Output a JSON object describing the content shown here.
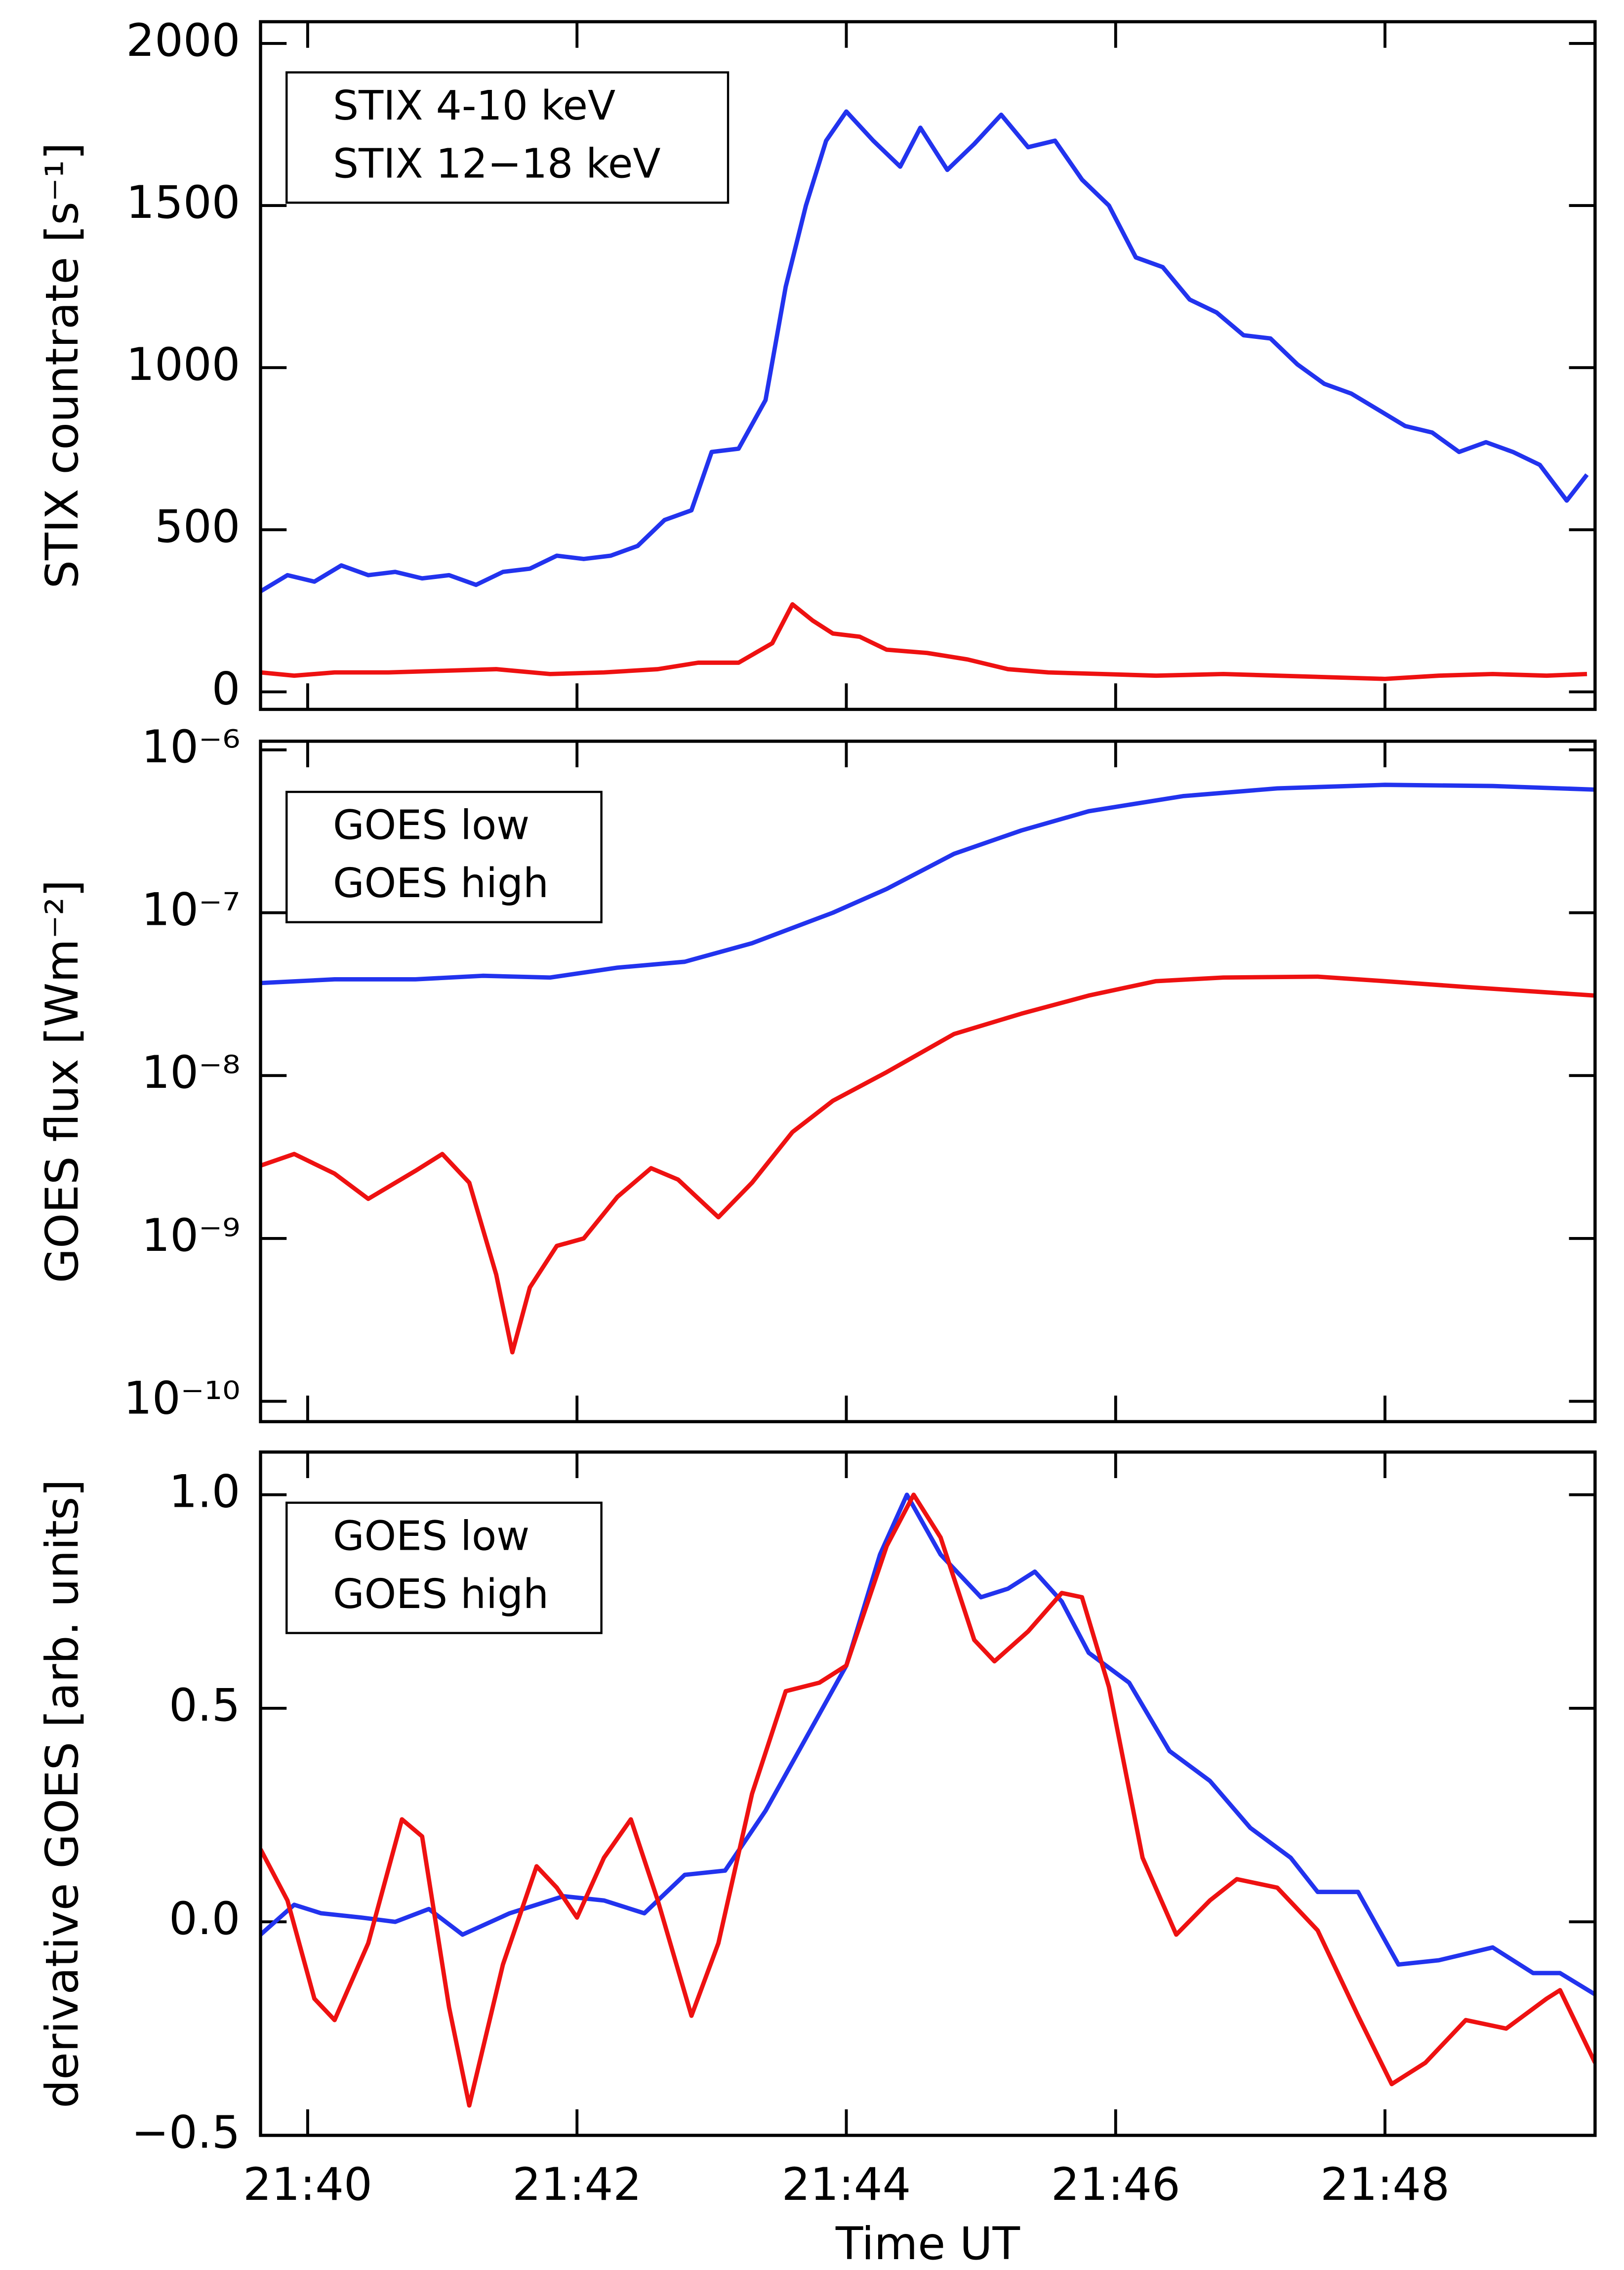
{
  "chart_data": [
    {
      "type": "line",
      "ylabel": "STIX countrate [s⁻¹]",
      "legend": "upper left",
      "log_y": false,
      "xlim": [
        39.65,
        49.56
      ],
      "xticks": [
        40,
        42,
        44,
        46,
        48
      ],
      "ylim": [
        -54,
        2067
      ],
      "yticks": [
        0,
        500,
        1000,
        1500,
        2000
      ],
      "series": [
        {
          "name": "STIX 4-10 keV",
          "color": "#2233ee",
          "x": [
            39.65,
            39.85,
            40.05,
            40.25,
            40.45,
            40.65,
            40.85,
            41.05,
            41.25,
            41.45,
            41.65,
            41.85,
            42.05,
            42.25,
            42.45,
            42.65,
            42.85,
            43.0,
            43.2,
            43.4,
            43.55,
            43.7,
            43.85,
            44.0,
            44.2,
            44.4,
            44.55,
            44.75,
            44.95,
            45.15,
            45.35,
            45.55,
            45.75,
            45.95,
            46.15,
            46.35,
            46.55,
            46.75,
            46.95,
            47.15,
            47.35,
            47.55,
            47.75,
            47.95,
            48.15,
            48.35,
            48.55,
            48.75,
            48.95,
            49.15,
            49.35,
            49.5
          ],
          "values": [
            310,
            360,
            340,
            390,
            360,
            370,
            350,
            360,
            330,
            370,
            380,
            420,
            410,
            420,
            450,
            530,
            560,
            740,
            750,
            900,
            1250,
            1500,
            1700,
            1790,
            1700,
            1620,
            1740,
            1610,
            1690,
            1780,
            1680,
            1700,
            1580,
            1500,
            1340,
            1310,
            1210,
            1170,
            1100,
            1090,
            1010,
            950,
            920,
            870,
            820,
            800,
            740,
            770,
            740,
            700,
            590,
            670
          ]
        },
        {
          "name": "STIX 12−18 keV",
          "color": "#ee1111",
          "x": [
            39.65,
            39.9,
            40.2,
            40.6,
            41.0,
            41.4,
            41.8,
            42.2,
            42.6,
            42.9,
            43.2,
            43.45,
            43.6,
            43.75,
            43.9,
            44.1,
            44.3,
            44.6,
            44.9,
            45.2,
            45.5,
            45.9,
            46.3,
            46.8,
            47.2,
            47.6,
            48.0,
            48.4,
            48.8,
            49.2,
            49.5
          ],
          "values": [
            60,
            50,
            60,
            60,
            65,
            70,
            55,
            60,
            70,
            90,
            90,
            150,
            270,
            220,
            180,
            170,
            130,
            120,
            100,
            70,
            60,
            55,
            50,
            55,
            50,
            45,
            40,
            50,
            55,
            50,
            55
          ]
        }
      ]
    },
    {
      "type": "line",
      "ylabel": "GOES flux [Wm⁻²]",
      "legend": "upper left",
      "log_y": true,
      "xlim": [
        39.65,
        49.56
      ],
      "xticks": [
        40,
        42,
        44,
        46,
        48
      ],
      "ylim": [
        7.5e-11,
        1.13e-06
      ],
      "yticks": [
        {
          "value": 1e-10,
          "label": "10⁻¹⁰"
        },
        {
          "value": 1e-09,
          "label": "10⁻⁹"
        },
        {
          "value": 1e-08,
          "label": "10⁻⁸"
        },
        {
          "value": 1e-07,
          "label": "10⁻⁷"
        },
        {
          "value": 1e-06,
          "label": "10⁻⁶"
        }
      ],
      "series": [
        {
          "name": "GOES low",
          "color": "#2233ee",
          "x": [
            39.65,
            40.2,
            40.8,
            41.3,
            41.8,
            42.3,
            42.8,
            43.3,
            43.9,
            44.3,
            44.8,
            45.3,
            45.8,
            46.5,
            47.2,
            48.0,
            48.8,
            49.56
          ],
          "values": [
            3.7e-08,
            3.9e-08,
            3.9e-08,
            4.1e-08,
            4e-08,
            4.6e-08,
            5e-08,
            6.5e-08,
            1e-07,
            1.4e-07,
            2.3e-07,
            3.2e-07,
            4.2e-07,
            5.2e-07,
            5.8e-07,
            6.1e-07,
            6e-07,
            5.7e-07
          ]
        },
        {
          "name": "GOES high",
          "color": "#ee1111",
          "x": [
            39.65,
            39.9,
            40.2,
            40.45,
            40.8,
            41.0,
            41.2,
            41.4,
            41.52,
            41.65,
            41.85,
            42.05,
            42.3,
            42.55,
            42.75,
            43.05,
            43.3,
            43.6,
            43.9,
            44.3,
            44.8,
            45.3,
            45.8,
            46.3,
            46.8,
            47.5,
            48.0,
            48.6,
            49.56
          ],
          "values": [
            2.8e-09,
            3.3e-09,
            2.5e-09,
            1.75e-09,
            2.6e-09,
            3.3e-09,
            2.2e-09,
            6e-10,
            2e-10,
            5e-10,
            9e-10,
            1e-09,
            1.8e-09,
            2.7e-09,
            2.3e-09,
            1.35e-09,
            2.2e-09,
            4.5e-09,
            7e-09,
            1.05e-08,
            1.8e-08,
            2.4e-08,
            3.1e-08,
            3.8e-08,
            4e-08,
            4.05e-08,
            3.8e-08,
            3.5e-08,
            3.1e-08
          ]
        }
      ]
    },
    {
      "type": "line",
      "ylabel": "derivative GOES [arb. units]",
      "xlabel": "Time UT",
      "legend": "upper left",
      "log_y": false,
      "xlim": [
        39.65,
        49.56
      ],
      "xticks": [
        {
          "value": 40,
          "label": "21:40"
        },
        {
          "value": 42,
          "label": "21:42"
        },
        {
          "value": 44,
          "label": "21:44"
        },
        {
          "value": 46,
          "label": "21:46"
        },
        {
          "value": 48,
          "label": "21:48"
        }
      ],
      "ylim": [
        -0.5,
        1.1
      ],
      "yticks": [
        {
          "value": -0.5,
          "label": "−0.5"
        },
        {
          "value": 0,
          "label": "0.0"
        },
        {
          "value": 0.5,
          "label": "0.5"
        },
        {
          "value": 1,
          "label": "1.0"
        }
      ],
      "series": [
        {
          "name": "GOES low",
          "color": "#2233ee",
          "x": [
            39.65,
            39.9,
            40.1,
            40.4,
            40.65,
            40.9,
            41.15,
            41.5,
            41.9,
            42.2,
            42.5,
            42.8,
            43.1,
            43.4,
            43.7,
            44.0,
            44.25,
            44.45,
            44.7,
            45.0,
            45.2,
            45.4,
            45.6,
            45.8,
            46.1,
            46.4,
            46.7,
            47.0,
            47.3,
            47.5,
            47.8,
            48.1,
            48.4,
            48.8,
            49.1,
            49.3,
            49.56
          ],
          "values": [
            -0.03,
            0.04,
            0.02,
            0.01,
            0.0,
            0.03,
            -0.03,
            0.02,
            0.06,
            0.05,
            0.02,
            0.11,
            0.12,
            0.26,
            0.43,
            0.6,
            0.86,
            1.0,
            0.86,
            0.76,
            0.78,
            0.82,
            0.75,
            0.63,
            0.56,
            0.4,
            0.33,
            0.22,
            0.15,
            0.07,
            0.07,
            -0.1,
            -0.09,
            -0.06,
            -0.12,
            -0.12,
            -0.17
          ]
        },
        {
          "name": "GOES high",
          "color": "#ee1111",
          "x": [
            39.65,
            39.85,
            40.05,
            40.2,
            40.45,
            40.7,
            40.85,
            41.05,
            41.2,
            41.45,
            41.7,
            41.85,
            42.0,
            42.2,
            42.4,
            42.6,
            42.85,
            43.05,
            43.3,
            43.55,
            43.8,
            44.0,
            44.3,
            44.5,
            44.7,
            44.95,
            45.1,
            45.35,
            45.6,
            45.75,
            45.95,
            46.2,
            46.45,
            46.7,
            46.9,
            47.2,
            47.5,
            47.8,
            48.05,
            48.3,
            48.6,
            48.9,
            49.2,
            49.3,
            49.56
          ],
          "values": [
            0.17,
            0.05,
            -0.18,
            -0.23,
            -0.05,
            0.24,
            0.2,
            -0.2,
            -0.43,
            -0.1,
            0.13,
            0.08,
            0.01,
            0.15,
            0.24,
            0.05,
            -0.22,
            -0.05,
            0.3,
            0.54,
            0.56,
            0.6,
            0.88,
            1.0,
            0.9,
            0.66,
            0.61,
            0.68,
            0.77,
            0.76,
            0.55,
            0.15,
            -0.03,
            0.05,
            0.1,
            0.08,
            -0.02,
            -0.22,
            -0.38,
            -0.33,
            -0.23,
            -0.25,
            -0.18,
            -0.16,
            -0.33
          ]
        }
      ]
    }
  ]
}
